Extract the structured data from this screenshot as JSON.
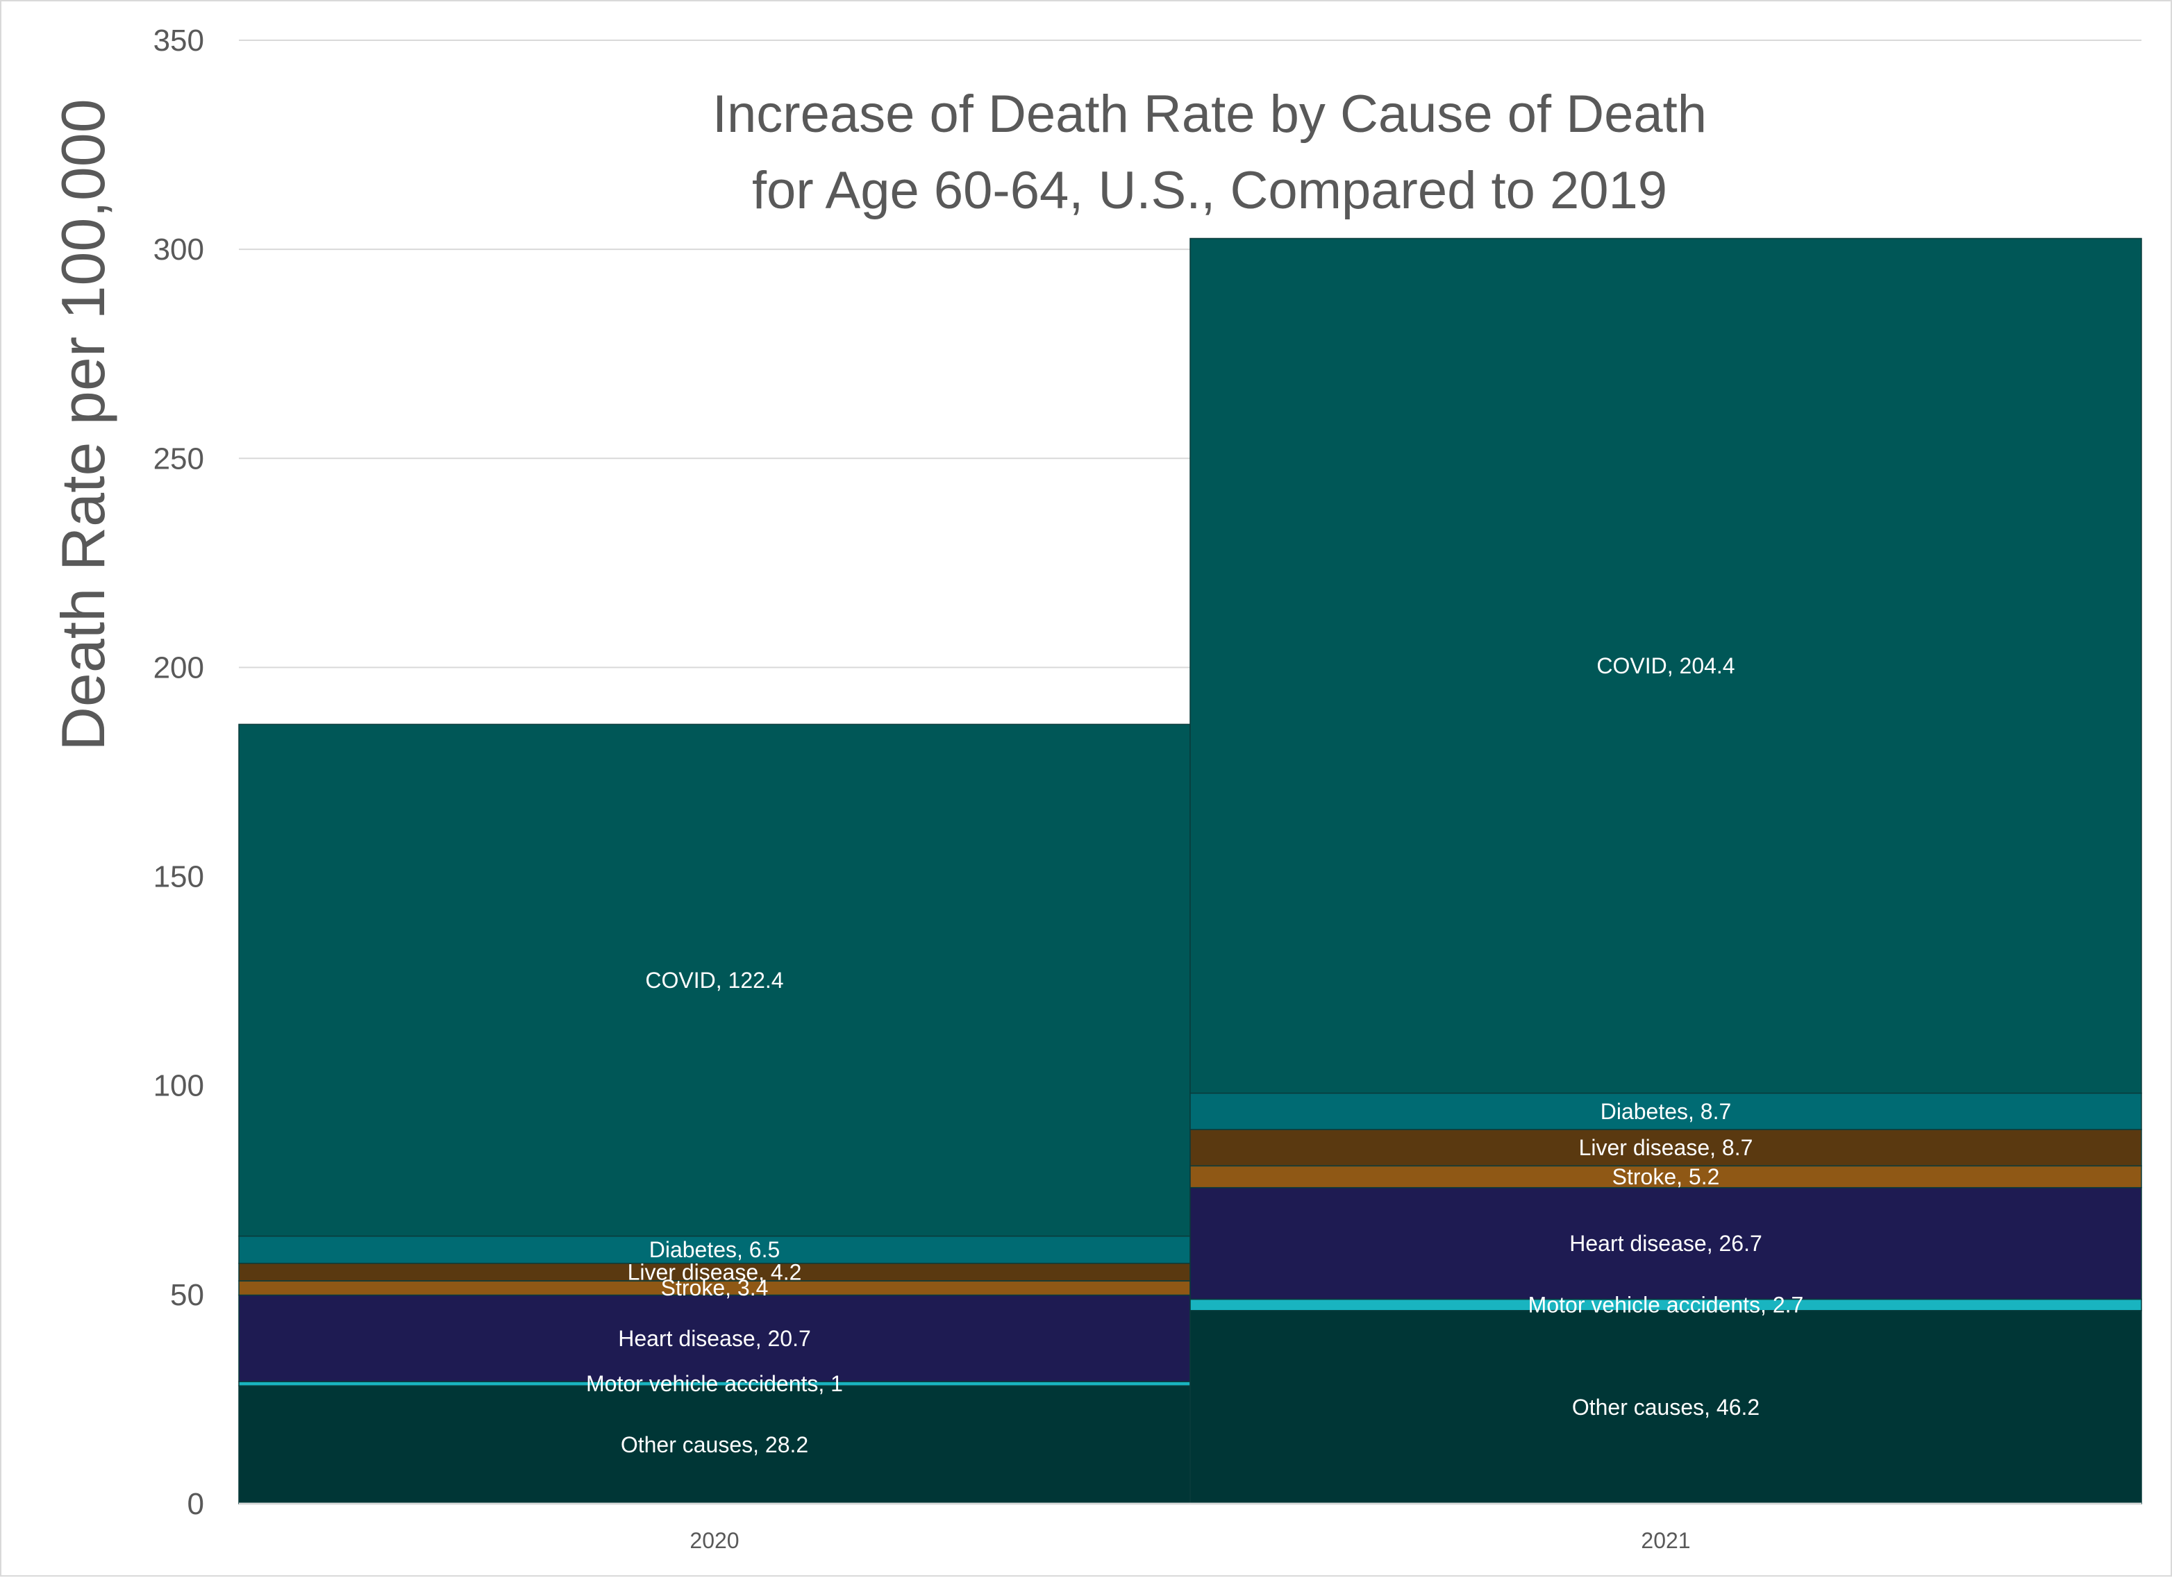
{
  "chart_data": {
    "type": "bar",
    "stacked": true,
    "title_lines": [
      "Increase of Death Rate by Cause of Death",
      "for Age 60-64, U.S., Compared to 2019"
    ],
    "xlabel": "",
    "ylabel": "Death Rate per 100,000",
    "ylim": [
      0,
      350
    ],
    "yticks": [
      0,
      50,
      100,
      150,
      200,
      250,
      300,
      350
    ],
    "grid": true,
    "legend": "none",
    "categories": [
      "2020",
      "2021"
    ],
    "series": [
      {
        "name": "Other causes",
        "color": "#003636",
        "values": [
          28.2,
          46.2
        ]
      },
      {
        "name": "Motor vehicle accidents",
        "color": "#19b4c0",
        "values": [
          1,
          2.7
        ]
      },
      {
        "name": "Heart disease",
        "color": "#1e1b52",
        "values": [
          20.7,
          26.7
        ]
      },
      {
        "name": "Stroke",
        "color": "#8f5815",
        "values": [
          3.4,
          5.2
        ]
      },
      {
        "name": "Liver disease",
        "color": "#5a3910",
        "values": [
          4.2,
          8.7
        ]
      },
      {
        "name": "Diabetes",
        "color": "#006b73",
        "values": [
          6.5,
          8.7
        ]
      },
      {
        "name": "COVID",
        "color": "#005757",
        "values": [
          122.4,
          204.4
        ]
      }
    ],
    "data_labels": [
      [
        "Other causes, 28.2",
        "Other causes, 46.2"
      ],
      [
        "Motor vehicle accidents, 1",
        "Motor vehicle accidents, 2.7"
      ],
      [
        "Heart disease, 20.7",
        "Heart disease, 26.7"
      ],
      [
        "Stroke, 3.4",
        "Stroke, 5.2"
      ],
      [
        "Liver disease, 4.2",
        "Liver disease, 8.7"
      ],
      [
        "Diabetes, 6.5",
        "Diabetes, 8.7"
      ],
      [
        "COVID, 122.4",
        "COVID, 204.4"
      ]
    ],
    "colors": {
      "gridline": "#d9d9d9",
      "text": "#595959",
      "label_text": "#ffffff"
    }
  }
}
